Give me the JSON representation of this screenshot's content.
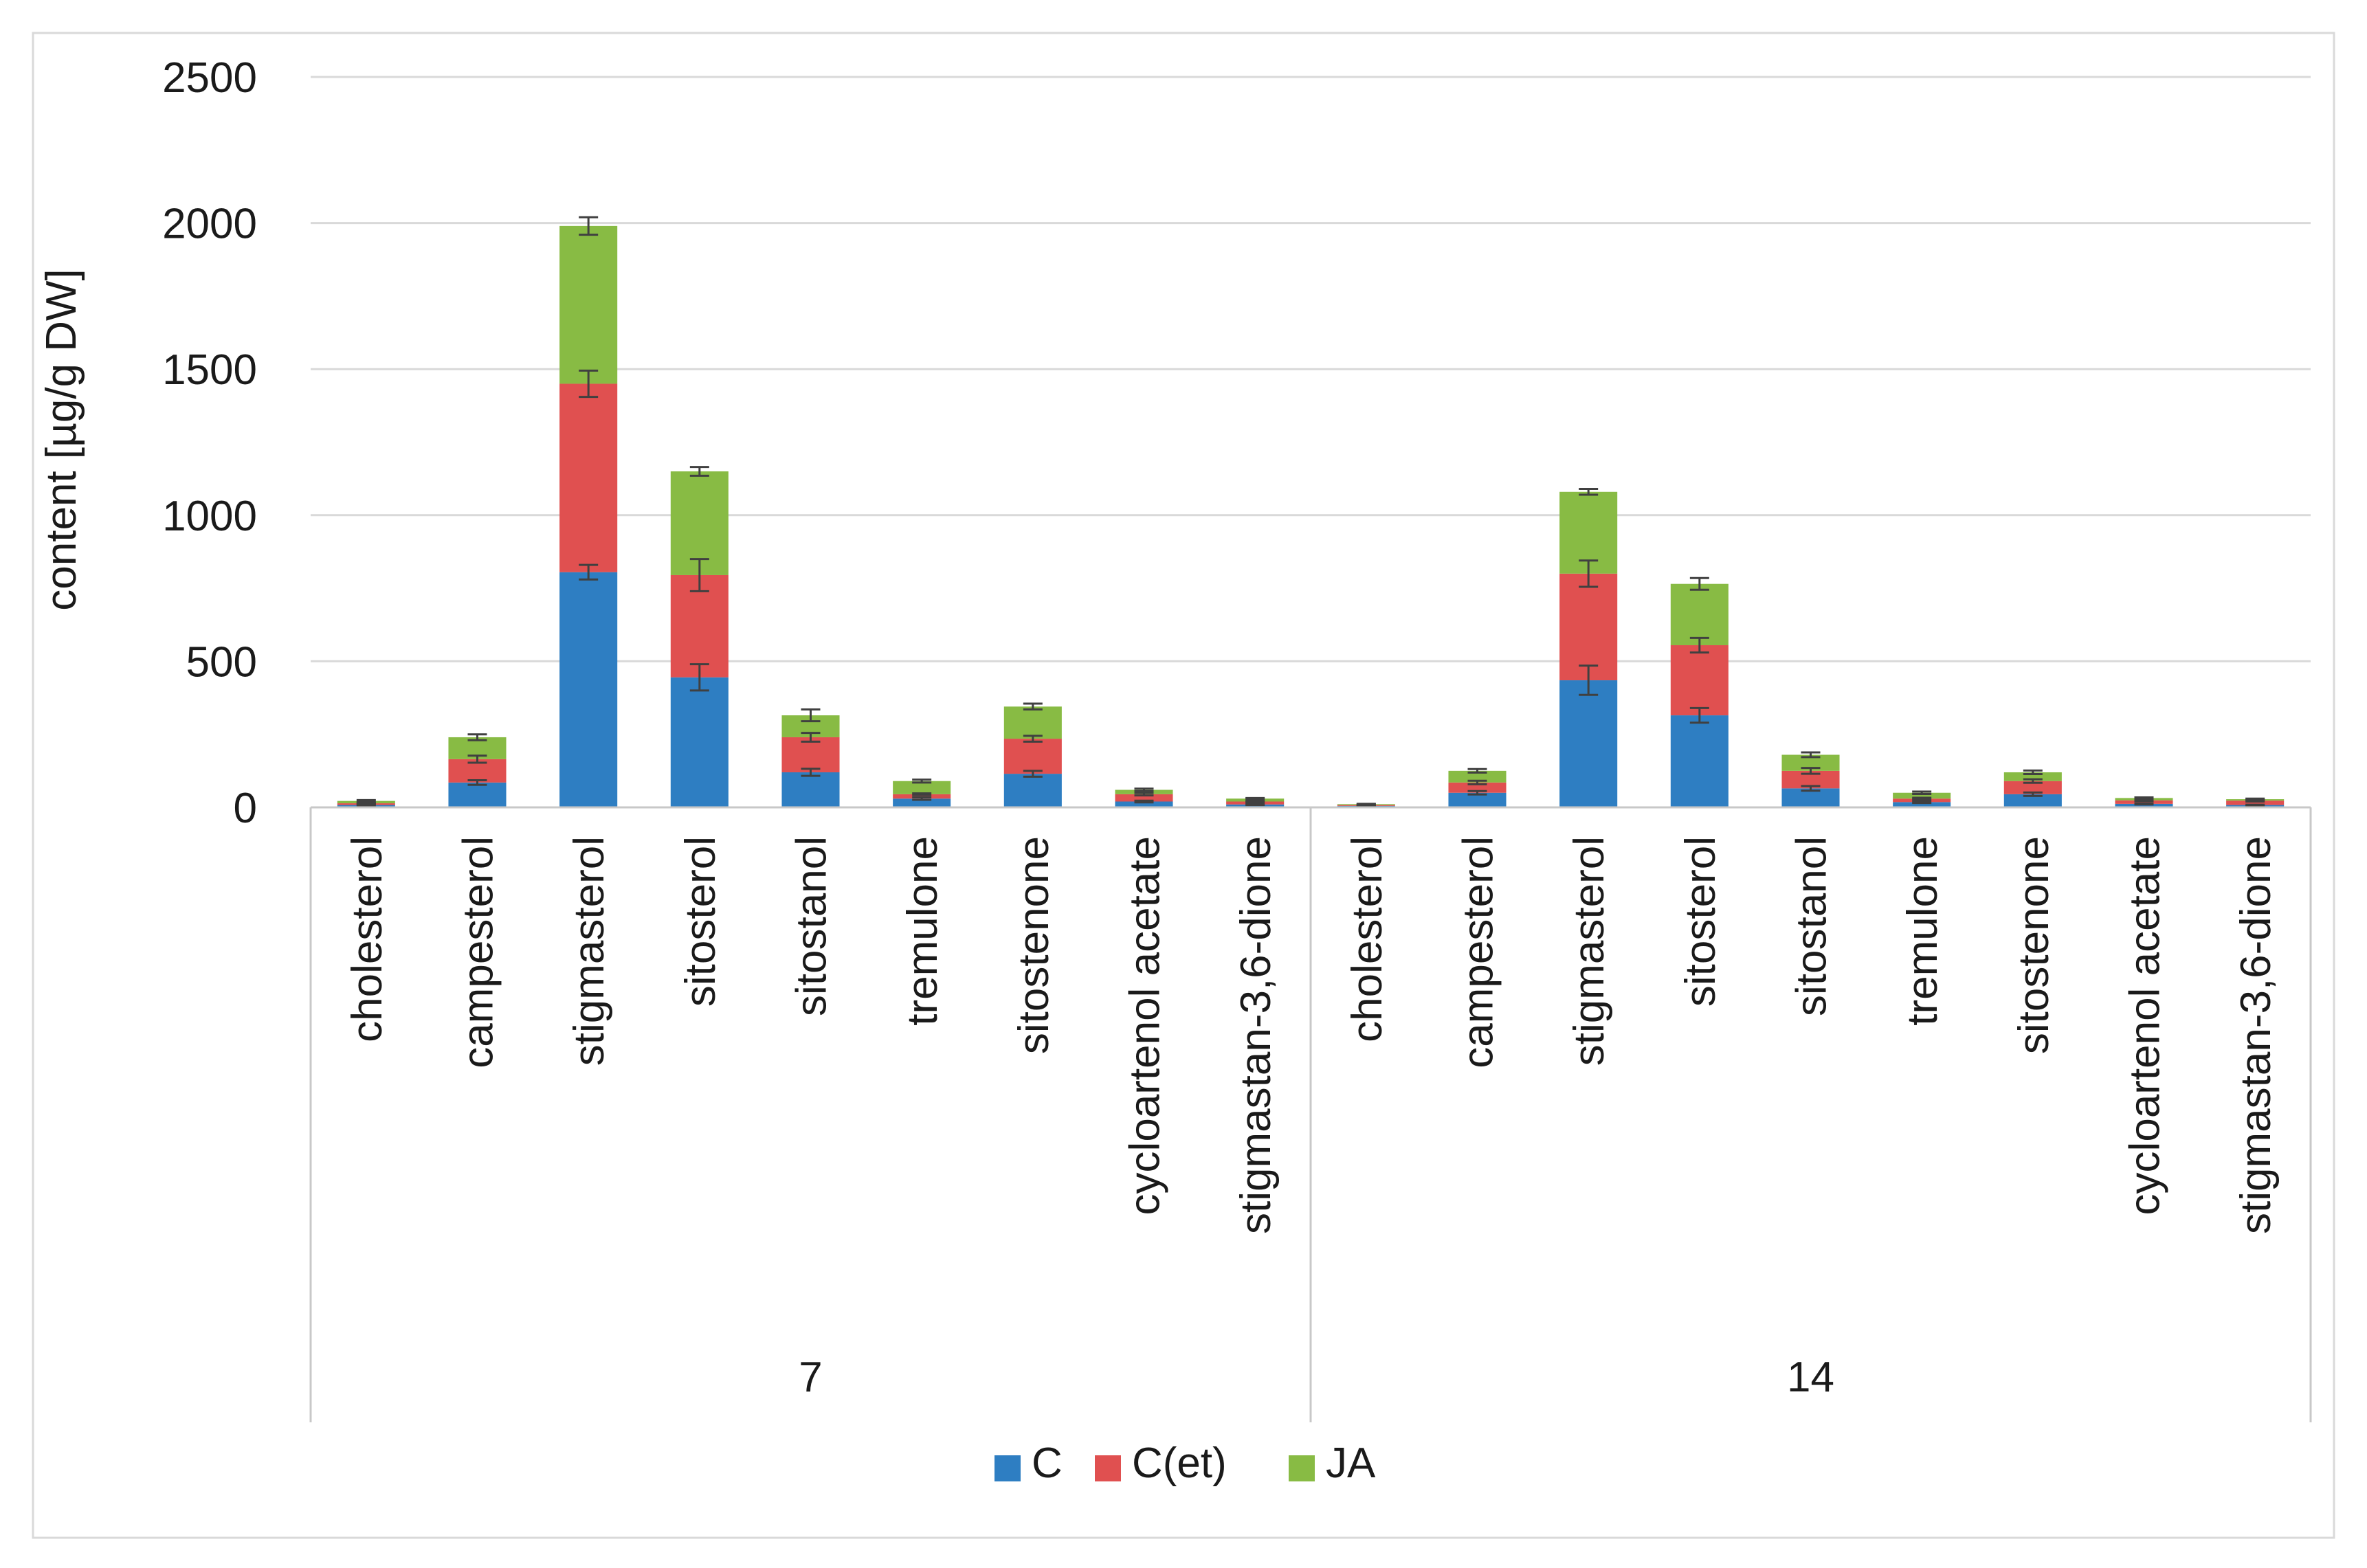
{
  "chart_data": {
    "type": "bar",
    "stacked": true,
    "title": "",
    "xlabel": "",
    "ylabel": "content [µg/g DW]",
    "ylim": [
      0,
      2500
    ],
    "yticks": [
      0,
      500,
      1000,
      1500,
      2000,
      2500
    ],
    "grid": true,
    "legend_position": "bottom-center",
    "groups": [
      {
        "label": "7",
        "categories": [
          "cholesterol",
          "campesterol",
          "stigmasterol",
          "sitosterol",
          "sitostanol",
          "tremulone",
          "sitostenone",
          "cycloartenol acetate",
          "stigmastan-3,6-dione"
        ]
      },
      {
        "label": "14",
        "categories": [
          "cholesterol",
          "campesterol",
          "stigmasterol",
          "sitosterol",
          "sitostanol",
          "tremulone",
          "sitostenone",
          "cycloartenol acetate",
          "stigmastan-3,6-dione"
        ]
      }
    ],
    "series": [
      {
        "name": "C",
        "color": "#2E7EC2",
        "values": [
          8,
          85,
          805,
          445,
          120,
          30,
          115,
          20,
          10,
          5,
          50,
          435,
          315,
          65,
          18,
          45,
          12,
          8
        ],
        "errors": [
          2,
          8,
          25,
          45,
          12,
          4,
          10,
          3,
          2,
          1,
          6,
          50,
          25,
          8,
          3,
          6,
          2,
          1
        ]
      },
      {
        "name": "C(et)",
        "color": "#E05050",
        "values": [
          6,
          80,
          645,
          350,
          120,
          15,
          120,
          25,
          10,
          3,
          35,
          365,
          240,
          60,
          12,
          45,
          12,
          15
        ],
        "errors": [
          2,
          12,
          45,
          55,
          15,
          3,
          10,
          4,
          2,
          1,
          6,
          45,
          25,
          10,
          3,
          6,
          2,
          3
        ]
      },
      {
        "name": "JA",
        "color": "#88BB44",
        "values": [
          8,
          75,
          540,
          355,
          75,
          45,
          110,
          15,
          10,
          3,
          40,
          280,
          210,
          55,
          20,
          30,
          8,
          5
        ],
        "errors": [
          3,
          10,
          30,
          15,
          20,
          5,
          10,
          4,
          2,
          1,
          6,
          10,
          20,
          8,
          4,
          6,
          2,
          2
        ]
      }
    ]
  }
}
